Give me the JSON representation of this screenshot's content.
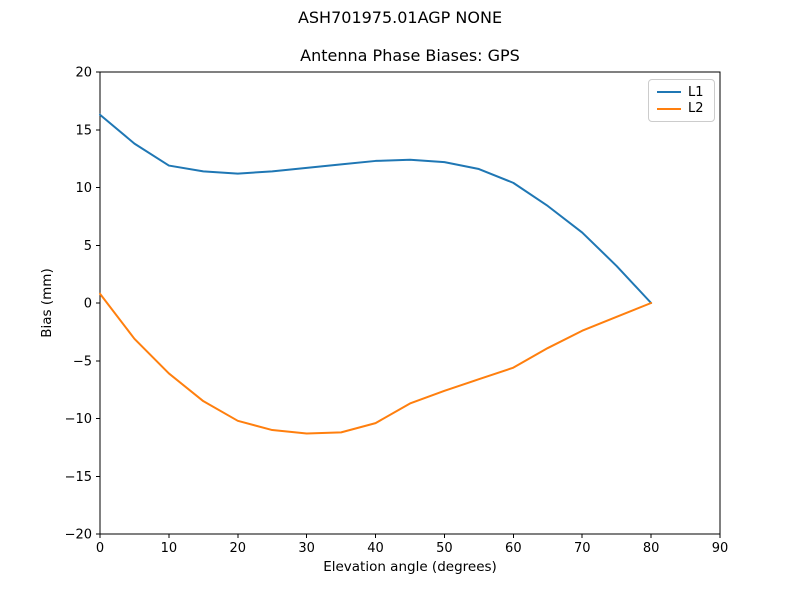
{
  "figure": {
    "suptitle": "ASH701975.01AGP NONE"
  },
  "chart_data": {
    "type": "line",
    "title": "Antenna Phase Biases: GPS",
    "xlabel": "Elevation angle (degrees)",
    "ylabel": "Bias (mm)",
    "xlim": [
      0,
      90
    ],
    "ylim": [
      -20,
      20
    ],
    "xticks": [
      0,
      10,
      20,
      30,
      40,
      50,
      60,
      70,
      80,
      90
    ],
    "yticks": [
      -20,
      -15,
      -10,
      -5,
      0,
      5,
      10,
      15,
      20
    ],
    "xtick_labels": [
      "0",
      "10",
      "20",
      "30",
      "40",
      "50",
      "60",
      "70",
      "80",
      "90"
    ],
    "ytick_labels": [
      "−20",
      "−15",
      "−10",
      "−5",
      "0",
      "5",
      "10",
      "15",
      "20"
    ],
    "grid": false,
    "legend_position": "upper right",
    "x": [
      0,
      5,
      10,
      15,
      20,
      25,
      30,
      35,
      40,
      45,
      50,
      55,
      60,
      65,
      70,
      75,
      80
    ],
    "series": [
      {
        "name": "L1",
        "color": "#1f77b4",
        "values": [
          16.3,
          13.8,
          11.9,
          11.4,
          11.2,
          11.4,
          11.7,
          12.0,
          12.3,
          12.4,
          12.2,
          11.6,
          10.4,
          8.4,
          6.1,
          3.2,
          0.0
        ]
      },
      {
        "name": "L2",
        "color": "#ff7f0e",
        "values": [
          0.8,
          -3.1,
          -6.1,
          -8.5,
          -10.2,
          -11.0,
          -11.3,
          -11.2,
          -10.4,
          -8.7,
          -7.6,
          -6.6,
          -5.6,
          -3.9,
          -2.4,
          -1.2,
          0.0
        ]
      }
    ]
  }
}
